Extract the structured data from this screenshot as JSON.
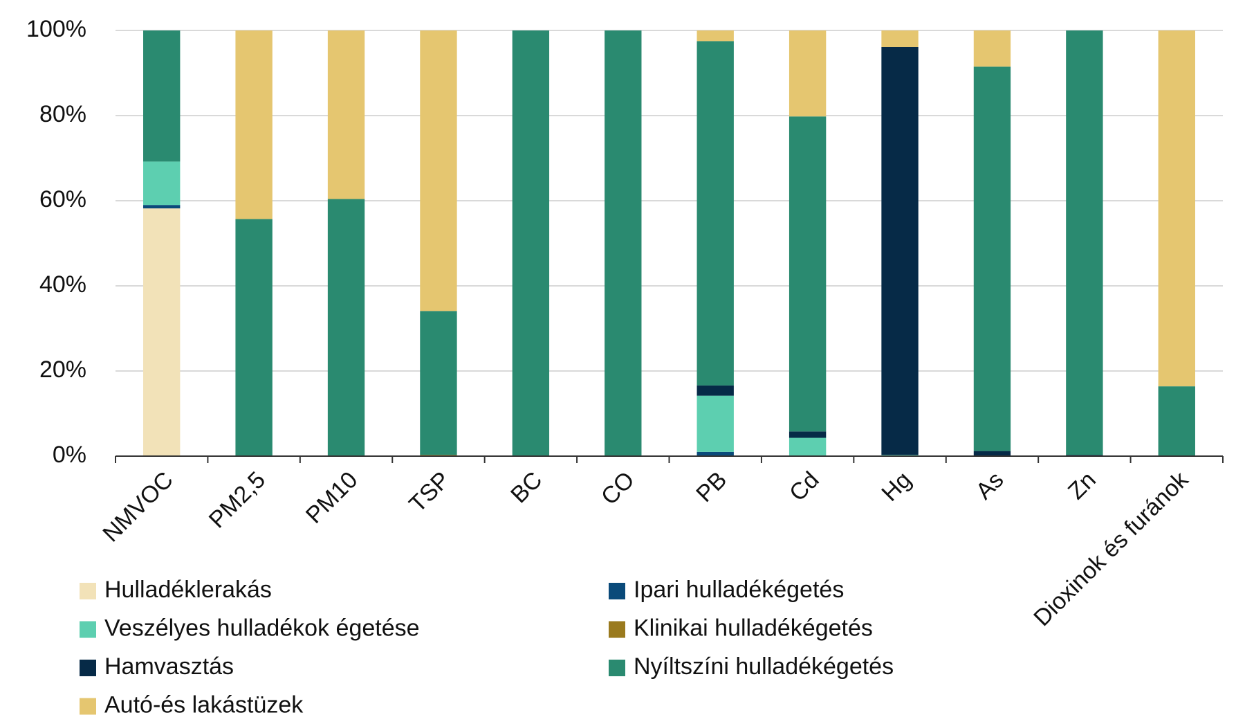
{
  "chart_data": {
    "type": "bar",
    "stacked": true,
    "categories": [
      "NMVOC",
      "PM2,5",
      "PM10",
      "TSP",
      "BC",
      "CO",
      "PB",
      "Cd",
      "Hg",
      "As",
      "Zn",
      "Dioxinok és furánok"
    ],
    "series": [
      {
        "name": "Hulladéklerakás",
        "color": "#f2e2b8",
        "values": [
          58.2,
          0,
          0,
          0,
          0,
          0,
          0,
          0,
          0,
          0,
          0,
          0
        ]
      },
      {
        "name": "Ipari hulladékégetés",
        "color": "#0a4a7a",
        "values": [
          0.8,
          0,
          0,
          0,
          0,
          0,
          1.0,
          0,
          0,
          0,
          0,
          0
        ]
      },
      {
        "name": "Veszélyes hulladékok égetése",
        "color": "#5dcfb0",
        "values": [
          10.2,
          0,
          0,
          0,
          0,
          0,
          13.2,
          4.3,
          0.3,
          0,
          0,
          0
        ]
      },
      {
        "name": "Klinikai hulladékégetés",
        "color": "#9a7a1e",
        "values": [
          0,
          0,
          0,
          0.3,
          0,
          0,
          0,
          0,
          0,
          0,
          0,
          0
        ]
      },
      {
        "name": "Hamvasztás",
        "color": "#062a47",
        "values": [
          0,
          0,
          0,
          0,
          0,
          0,
          2.4,
          1.5,
          95.8,
          1.2,
          0.3,
          0
        ]
      },
      {
        "name": "Nyíltszíni hulladékégetés",
        "color": "#2a8a70",
        "values": [
          30.8,
          55.7,
          60.4,
          33.8,
          100,
          100,
          80.9,
          74.0,
          0,
          90.3,
          99.7,
          16.4
        ]
      },
      {
        "name": "Autó-és lakástüzek",
        "color": "#e5c670",
        "values": [
          0,
          44.3,
          39.6,
          65.9,
          0,
          0,
          2.5,
          20.2,
          3.9,
          8.5,
          0,
          83.6
        ]
      }
    ],
    "ylim": [
      0,
      100
    ],
    "yticks": [
      {
        "value": 0,
        "label": "0%"
      },
      {
        "value": 20,
        "label": "20%"
      },
      {
        "value": 40,
        "label": "40%"
      },
      {
        "value": 60,
        "label": "60%"
      },
      {
        "value": 80,
        "label": "80%"
      },
      {
        "value": 100,
        "label": "100%"
      }
    ],
    "grid": true,
    "legend": "bottom"
  }
}
